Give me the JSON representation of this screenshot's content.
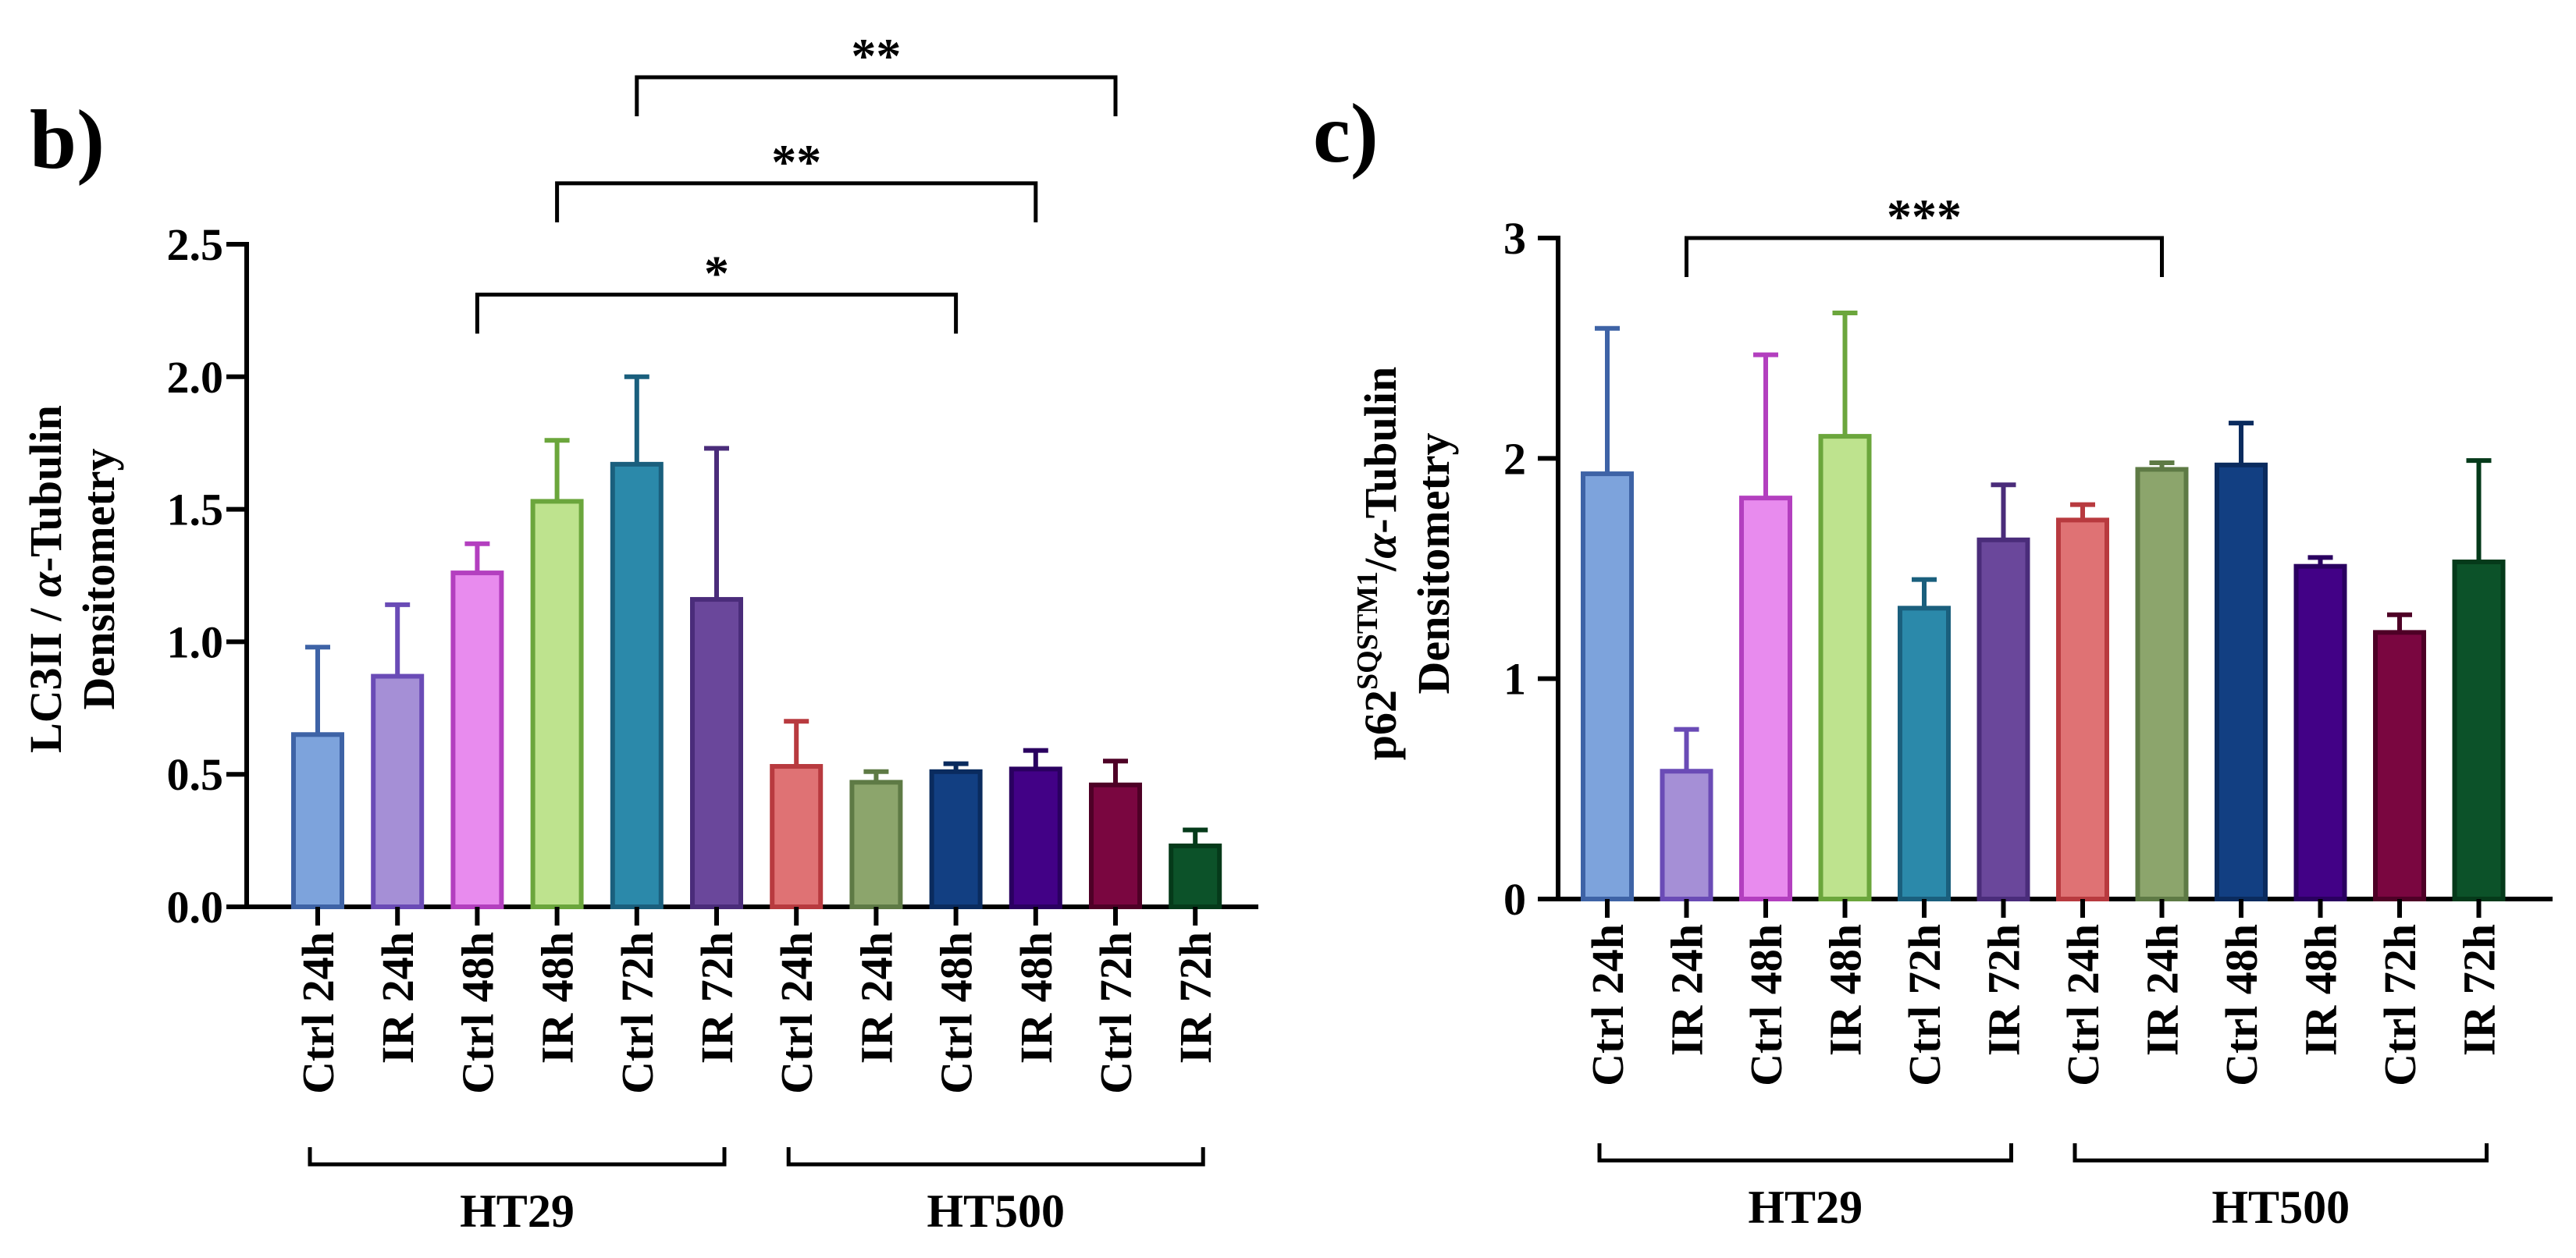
{
  "chart_data": [
    {
      "type": "bar",
      "panel_label": "b)",
      "ylabel_line1_prefix": "LC3II / ",
      "ylabel_line1_greek": "α",
      "ylabel_line1_suffix": "-Tubulin",
      "ylabel_line2": "Densitometry",
      "ylim": [
        0,
        2.5
      ],
      "yticks": [
        "0.0",
        "0.5",
        "1.0",
        "1.5",
        "2.0",
        "2.5"
      ],
      "categories": [
        "Ctrl 24h",
        "IR 24h",
        "Ctrl 48h",
        "IR 48h",
        "Ctrl 72h",
        "IR 72h",
        "Ctrl 24h",
        "IR 24h",
        "Ctrl 48h",
        "IR 48h",
        "Ctrl 72h",
        "IR 72h"
      ],
      "values": [
        0.65,
        0.87,
        1.26,
        1.53,
        1.67,
        1.16,
        0.53,
        0.47,
        0.51,
        0.52,
        0.46,
        0.23
      ],
      "errors": [
        0.33,
        0.27,
        0.11,
        0.23,
        0.33,
        0.57,
        0.17,
        0.04,
        0.03,
        0.07,
        0.09,
        0.06
      ],
      "groups": [
        {
          "label": "HT29",
          "start": 0,
          "end": 5
        },
        {
          "label": "HT500",
          "start": 6,
          "end": 11
        }
      ],
      "significance": [
        {
          "from": 2,
          "to": 8,
          "label": "*",
          "level": 2.31
        },
        {
          "from": 3,
          "to": 9,
          "label": "**",
          "level": 2.73
        },
        {
          "from": 4,
          "to": 10,
          "label": "**",
          "level": 3.13
        }
      ]
    },
    {
      "type": "bar",
      "panel_label": "c)",
      "ylabel_line1_prefix": "p62",
      "ylabel_line1_sup": "SQSTM1",
      "ylabel_line1_mid": "/",
      "ylabel_line1_greek": "α",
      "ylabel_line1_suffix": "-Tubulin",
      "ylabel_line2": "Densitometry",
      "ylim": [
        0,
        3
      ],
      "yticks": [
        "0",
        "1",
        "2",
        "3"
      ],
      "categories": [
        "Ctrl 24h",
        "IR 24h",
        "Ctrl 48h",
        "IR 48h",
        "Ctrl 72h",
        "IR 72h",
        "Ctrl 24h",
        "IR 24h",
        "Ctrl 48h",
        "IR 48h",
        "Ctrl 72h",
        "IR 72h"
      ],
      "values": [
        1.93,
        0.58,
        1.82,
        2.1,
        1.32,
        1.63,
        1.72,
        1.95,
        1.97,
        1.51,
        1.21,
        1.53
      ],
      "errors": [
        0.66,
        0.19,
        0.65,
        0.56,
        0.13,
        0.25,
        0.07,
        0.03,
        0.19,
        0.04,
        0.08,
        0.46
      ],
      "groups": [
        {
          "label": "HT29",
          "start": 0,
          "end": 5
        },
        {
          "label": "HT500",
          "start": 6,
          "end": 11
        }
      ],
      "significance": [
        {
          "from": 1,
          "to": 7,
          "label": "***",
          "level": 3.0
        }
      ]
    }
  ],
  "colors": {
    "fill": [
      "#7DA3DC",
      "#A58FD6",
      "#E88BEE",
      "#BEE38E",
      "#2B89AA",
      "#6A479B",
      "#DF7274",
      "#8CA56C",
      "#123F82",
      "#420186",
      "#7A0640",
      "#0C5229"
    ],
    "edge": [
      "#3E63A6",
      "#6A4BB6",
      "#B33FBF",
      "#6BA63C",
      "#1A5F7D",
      "#4A2C7A",
      "#B83A3F",
      "#5E7A45",
      "#0A2B5E",
      "#2A0060",
      "#4E0026",
      "#053A1A"
    ]
  }
}
